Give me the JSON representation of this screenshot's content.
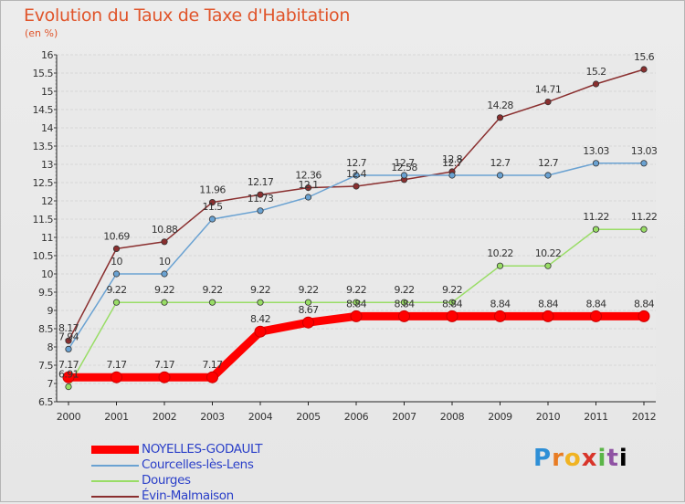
{
  "chart_data": {
    "type": "line",
    "title": "Evolution du Taux de Taxe d'Habitation",
    "subtitle": "(en %)",
    "x": [
      "2000",
      "2001",
      "2002",
      "2003",
      "2004",
      "2005",
      "2006",
      "2007",
      "2008",
      "2009",
      "2010",
      "2011",
      "2012"
    ],
    "ylim": [
      6.5,
      16
    ],
    "yticks": [
      "6.5",
      "7",
      "7.5",
      "8",
      "8.5",
      "9",
      "9.5",
      "10",
      "10.5",
      "11",
      "11.5",
      "12",
      "12.5",
      "13",
      "13.5",
      "14",
      "14.5",
      "15",
      "15.5",
      "16"
    ],
    "grid": "horizontal",
    "legend_position": "bottom-left",
    "series": [
      {
        "name": "NOYELLES-GODAULT",
        "color": "#ff0000",
        "values": [
          7.17,
          7.17,
          7.17,
          7.17,
          8.42,
          8.67,
          8.84,
          8.84,
          8.84,
          8.84,
          8.84,
          8.84,
          8.84
        ],
        "labels": [
          "7.17",
          "7.17",
          "7.17",
          "7.17",
          "8.42",
          "8.67",
          "8.84",
          "8.84",
          "8.84",
          "8.84",
          "8.84",
          "8.84",
          "8.84"
        ]
      },
      {
        "name": "Courcelles-lès-Lens",
        "color": "#6aa2d2",
        "values": [
          7.94,
          10,
          10,
          11.5,
          11.73,
          12.1,
          12.7,
          12.7,
          12.7,
          12.7,
          12.7,
          13.03,
          13.03
        ],
        "labels": [
          "7.94",
          "10",
          "10",
          "11.5",
          "11.73",
          "12.1",
          "12.7",
          "12.7",
          "12.7",
          "12.7",
          "12.7",
          "13.03",
          "13.03"
        ]
      },
      {
        "name": "Dourges",
        "color": "#99dd66",
        "values": [
          6.91,
          9.22,
          9.22,
          9.22,
          9.22,
          9.22,
          9.22,
          9.22,
          9.22,
          10.22,
          10.22,
          11.22,
          11.22
        ],
        "labels": [
          "6.91",
          "9.22",
          "9.22",
          "9.22",
          "9.22",
          "9.22",
          "9.22",
          "9.22",
          "9.22",
          "10.22",
          "10.22",
          "11.22",
          "11.22"
        ]
      },
      {
        "name": "Évin-Malmaison",
        "color": "#8a2f2f",
        "values": [
          8.17,
          10.69,
          10.88,
          11.96,
          12.17,
          12.36,
          12.4,
          12.58,
          12.8,
          14.28,
          14.71,
          15.2,
          15.6
        ],
        "labels": [
          "8.17",
          "10.69",
          "10.88",
          "11.96",
          "12.17",
          "12.36",
          "12.4",
          "12.58",
          "12.8",
          "14.28",
          "14.71",
          "15.2",
          "15.6"
        ]
      }
    ]
  },
  "branding": {
    "logo_letters": [
      "P",
      "r",
      "o",
      "x",
      "i",
      "t",
      "i"
    ]
  }
}
